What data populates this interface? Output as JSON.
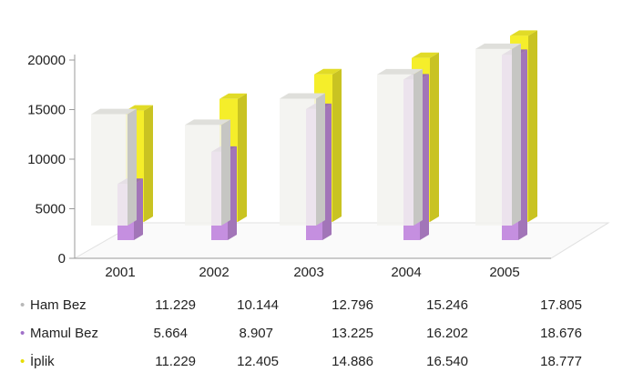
{
  "chart_data": {
    "type": "bar",
    "categories": [
      "2001",
      "2002",
      "2003",
      "2004",
      "2005"
    ],
    "yticks": [
      "0",
      "5000",
      "10000",
      "15000",
      "20000"
    ],
    "ylim": [
      0,
      20000
    ],
    "series": [
      {
        "name": "Ham Bez",
        "values": [
          11229,
          10144,
          12796,
          15246,
          17805
        ],
        "color": "#f2f2ee"
      },
      {
        "name": "Mamul Bez",
        "values": [
          5664,
          8907,
          13225,
          16202,
          18676
        ],
        "color": "#c58fe0"
      },
      {
        "name": "İplik",
        "values": [
          11229,
          12405,
          14886,
          16540,
          18777
        ],
        "color": "#f5ee2a"
      }
    ]
  },
  "table": {
    "rows": [
      {
        "label": "Ham Bez",
        "bullet": "•",
        "values": [
          "11.229",
          "10.144",
          "12.796",
          "15.246",
          "17.805"
        ]
      },
      {
        "label": "Mamul Bez",
        "bullet": "•",
        "values": [
          "5.664",
          "8.907",
          "13.225",
          "16.202",
          "18.676"
        ]
      },
      {
        "label": "İplik",
        "bullet": "•",
        "values": [
          "11.229",
          "12.405",
          "14.886",
          "16.540",
          "18.777"
        ]
      }
    ]
  }
}
